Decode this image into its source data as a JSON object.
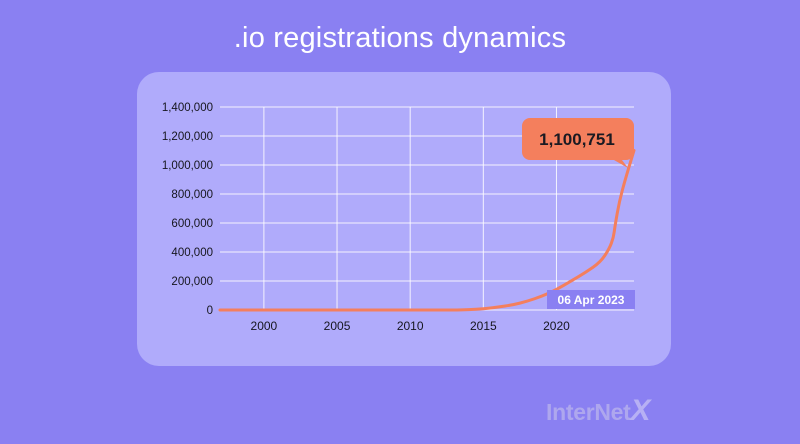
{
  "title": ".io registrations dynamics",
  "brand": {
    "main": "InterNet",
    "x": "X"
  },
  "chart_data": {
    "type": "line",
    "title": ".io registrations dynamics",
    "xlabel": "",
    "ylabel": "",
    "xlim": [
      1997,
      2025.3
    ],
    "ylim": [
      0,
      1400000
    ],
    "xticks": [
      2000,
      2005,
      2010,
      2015,
      2020
    ],
    "yticks": [
      0,
      200000,
      400000,
      600000,
      800000,
      1000000,
      1200000,
      1400000
    ],
    "ytick_labels": [
      "0",
      "200,000",
      "400,000",
      "600,000",
      "800,000",
      "1,000,000",
      "1,200,000",
      "1,400,000"
    ],
    "grid": true,
    "series": [
      {
        "color": "#f47f5d",
        "points": [
          [
            1997,
            0
          ],
          [
            2005,
            0
          ],
          [
            2010,
            0
          ],
          [
            2013,
            0
          ],
          [
            2014,
            2000
          ],
          [
            2015,
            8000
          ],
          [
            2016,
            20000
          ],
          [
            2017,
            35000
          ],
          [
            2018,
            60000
          ],
          [
            2019,
            95000
          ],
          [
            2020,
            140000
          ],
          [
            2021,
            200000
          ],
          [
            2022,
            260000
          ],
          [
            2023,
            330000
          ],
          [
            2023.6,
            420000
          ],
          [
            2023.9,
            500000
          ],
          [
            2024.0,
            580000
          ],
          [
            2024.3,
            750000
          ],
          [
            2024.7,
            900000
          ],
          [
            2025.3,
            1100751
          ]
        ]
      }
    ],
    "annotations": [
      {
        "text": "1,100,751",
        "x": 2025.3,
        "y": 1100751,
        "color": "#f47f5d"
      },
      {
        "text": "06 Apr 2023",
        "x": 2023,
        "y": 0
      }
    ]
  }
}
